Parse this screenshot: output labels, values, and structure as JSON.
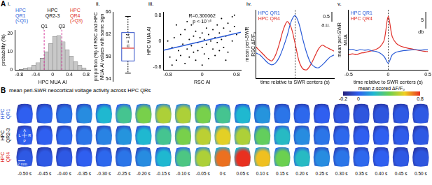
{
  "panel_A_label": "A",
  "chart_data": [
    {
      "panel": "i.",
      "type": "bar",
      "x_label": "HPC MUA AI",
      "y_label": "probability (%)",
      "bins": [
        -0.8,
        -0.7,
        -0.6,
        -0.5,
        -0.4,
        -0.3,
        -0.2,
        -0.1,
        0,
        0.1,
        0.2,
        0.3,
        0.4,
        0.5,
        0.6,
        0.7,
        0.8
      ],
      "values": [
        0.3,
        0.7,
        1.3,
        2.5,
        4,
        6.5,
        10,
        14.5,
        18.5,
        19,
        15.5,
        11,
        7.5,
        4.5,
        2.5,
        1
      ],
      "color": "#c8c8c8",
      "xlim": [
        -0.9,
        0.9
      ],
      "xticks": [
        -0.8,
        -0.4,
        0,
        0.4,
        0.8
      ],
      "ylim": [
        0,
        22
      ],
      "yticks": [
        0,
        10,
        20
      ],
      "grid": false,
      "quartiles": [
        {
          "label": "Q1",
          "value": -0.2
        },
        {
          "label": "Q3",
          "value": 0.22
        }
      ],
      "groups": [
        {
          "label": [
            "HPC",
            "QR1",
            "(<Q1)"
          ],
          "color": "#2a5bd7"
        },
        {
          "label": [
            "HPC",
            "QR2-3"
          ],
          "color": "#000000"
        },
        {
          "label": [
            "HPC",
            "QR4",
            "(>Q3)"
          ],
          "color": "#e0302a"
        }
      ]
    },
    {
      "panel": "ii.",
      "type": "box",
      "y_label": [
        "proportion (%) of RSC and HPC",
        "MUA AI values with same sign"
      ],
      "box": {
        "min": 55,
        "q1": 57.2,
        "median": 59.5,
        "q3": 62.3,
        "max": 65.2
      },
      "annotation": "n = 14",
      "ylim": [
        53.5,
        66
      ],
      "yticks": [
        54,
        58,
        62,
        66
      ],
      "tick_labels": "y",
      "grid": false
    },
    {
      "panel": "iii.",
      "type": "scatter",
      "x_label": "RSC AI",
      "y_label": "HPC MUA AI",
      "series": [
        {
          "type": "scatter",
          "color": "#000000",
          "x": [
            -0.75,
            -0.7,
            -0.65,
            -0.6,
            -0.55,
            -0.5,
            -0.5,
            -0.45,
            -0.4,
            -0.4,
            -0.35,
            -0.3,
            -0.3,
            -0.25,
            -0.25,
            -0.2,
            -0.2,
            -0.15,
            -0.15,
            -0.1,
            -0.1,
            -0.05,
            -0.05,
            0,
            0,
            0,
            0.05,
            0.05,
            0.1,
            0.1,
            0.15,
            0.15,
            0.2,
            0.2,
            0.25,
            0.25,
            0.3,
            0.3,
            0.35,
            0.35,
            0.4,
            0.4,
            0.45,
            0.45,
            0.5,
            0.5,
            0.55,
            0.6,
            0.6,
            0.65,
            0.7,
            0.7,
            0.75,
            -0.6,
            -0.8,
            0.8,
            -0.35,
            0.55,
            -0.7,
            0.75
          ],
          "values": [
            -0.5,
            -0.2,
            0.1,
            -0.6,
            -0.3,
            0.2,
            -0.45,
            -0.1,
            -0.7,
            0.35,
            -0.25,
            0.05,
            -0.5,
            0.5,
            -0.15,
            -0.35,
            0.15,
            -0.6,
            0.3,
            -0.05,
            -0.3,
            0.6,
            0.1,
            -0.2,
            0.25,
            -0.75,
            0.05,
            -0.4,
            0.4,
            -0.1,
            0.2,
            -0.55,
            0.65,
            0,
            -0.25,
            0.35,
            0.1,
            -0.45,
            0.5,
            -0.05,
            0.25,
            -0.3,
            0.7,
            0.05,
            0.4,
            -0.2,
            0.15,
            0.55,
            -0.35,
            0.3,
            0.75,
            0,
            0.45,
            0.5,
            0,
            0.2,
            0.6,
            -0.6,
            -0.75,
            0.8
          ]
        },
        {
          "type": "line",
          "color": "#2a5bd7",
          "x": [
            -0.9,
            0.9
          ],
          "values": [
            -0.29,
            0.27
          ]
        }
      ],
      "annotations": [
        "R=0.300062",
        "p < 10⁻¹⁵"
      ],
      "xlim": [
        -0.9,
        0.9
      ],
      "xticks": [
        -0.8,
        0,
        0.8
      ],
      "ylim": [
        -0.9,
        0.9
      ],
      "yticks": [
        -0.8,
        0,
        0.8
      ],
      "grid": false
    },
    {
      "panel": "iv.",
      "type": "line",
      "x_label": "time relative to SWR centers (s)",
      "y_label": [
        "mean peri-SWR",
        "RSC ΔF/F₀"
      ],
      "x": [
        -1,
        -0.9,
        -0.8,
        -0.7,
        -0.6,
        -0.5,
        -0.4,
        -0.3,
        -0.2,
        -0.1,
        0,
        0.1,
        0.2,
        0.3,
        0.4,
        0.5,
        0.6,
        0.7,
        0.8,
        0.9,
        1
      ],
      "series": [
        {
          "name": "HPC QR1",
          "color": "#2a5bd7",
          "values": [
            0.3,
            0.2,
            0,
            -0.2,
            -0.3,
            -0.2,
            0.1,
            0.6,
            1.2,
            1.9,
            2.2,
            1.8,
            1,
            0.3,
            -0.2,
            -0.4,
            -0.45,
            -0.3,
            -0.1,
            0.1,
            0.2
          ]
        },
        {
          "name": "HPC QR4",
          "color": "#e0302a",
          "values": [
            0.6,
            0.4,
            0.2,
            0,
            -0.1,
            0.2,
            0.8,
            1.5,
            1.9,
            1.6,
            0.8,
            -0.1,
            -0.5,
            -0.55,
            -0.3,
            0.1,
            0.5,
            0.7,
            0.6,
            0.5,
            0.4
          ]
        }
      ],
      "legend": "top-left",
      "tick_labels": false,
      "grid": false,
      "xlim": [
        -1,
        1
      ],
      "ylim": [
        -1,
        2.5
      ],
      "reference_line_x": 0,
      "scale_bar": {
        "value": 0.5,
        "label": "0.5",
        "unit": "a.u."
      }
    },
    {
      "panel": "v.",
      "type": "line",
      "x_label": "time relative to SWR centers (s)",
      "y_label": [
        "mean peri-SWR",
        "MUA"
      ],
      "x": [
        -0.5,
        -0.45,
        -0.4,
        -0.35,
        -0.3,
        -0.25,
        -0.2,
        -0.15,
        -0.1,
        -0.05,
        0,
        0.05,
        0.1,
        0.15,
        0.2,
        0.25,
        0.3,
        0.35,
        0.4,
        0.45,
        0.5
      ],
      "series": [
        {
          "name": "HPC QR1",
          "color": "#2a5bd7",
          "values": [
            3,
            3.2,
            2.8,
            3.1,
            2.9,
            3,
            2.7,
            2.5,
            2,
            1,
            -1,
            1.5,
            2.3,
            2.6,
            2.8,
            2.9,
            3,
            3.1,
            2.9,
            3,
            3
          ]
        },
        {
          "name": "HPC QR4",
          "color": "#e0302a",
          "values": [
            1.5,
            1.8,
            1.6,
            2,
            2.2,
            2.5,
            2.8,
            3.2,
            4,
            6,
            13,
            7,
            5,
            4.2,
            3.8,
            3.5,
            3.3,
            3,
            2.8,
            2.6,
            2.5
          ]
        }
      ],
      "legend": "top-left",
      "tick_labels": "x",
      "grid": false,
      "xlim": [
        -0.5,
        0.5
      ],
      "xticks": [
        -0.5,
        0,
        0.5
      ],
      "ylim": [
        -3,
        15
      ],
      "reference_line_x": 0,
      "scale_bar": {
        "value": 5,
        "label": "5",
        "unit": "db"
      }
    }
  ],
  "panel_B": {
    "label": "B",
    "title": "mean peri-SWR neocortical voltage activity across HPC QRs",
    "colorbar": {
      "title": "mean z-scored ΔF/F₀",
      "range": [
        -0.2,
        0.8
      ],
      "ticks": [
        -0.2,
        0,
        0.8
      ]
    },
    "times": [
      "-0.50 s",
      "-0.45 s",
      "-0.40 s",
      "-0.35 s",
      "-0.30 s",
      "-0.25 s",
      "-0.20 s",
      "-0.15 s",
      "-0.10 s",
      "-0.05 s",
      "0 s",
      "0.05 s",
      "0.10 s",
      "0.15 s",
      "0.20 s",
      "0.25 s",
      "0.30 s",
      "0.35 s",
      "0.40 s",
      "0.45 s",
      "0.50 s"
    ],
    "rows": [
      {
        "label": [
          "HPC",
          "QR1"
        ],
        "color": "#2a5bd7",
        "values": [
          0,
          0.02,
          0.05,
          0.1,
          0.2,
          0.3,
          0.42,
          0.5,
          0.5,
          0.42,
          0.3,
          0.2,
          0.12,
          0.05,
          0.02,
          0,
          -0.02,
          -0.03,
          -0.03,
          -0.02,
          -0.02
        ]
      },
      {
        "label": [
          "HPC",
          "QR2-3"
        ],
        "color": "#000000",
        "values": [
          0,
          0,
          0.02,
          0.05,
          0.08,
          0.12,
          0.2,
          0.3,
          0.42,
          0.52,
          0.58,
          0.5,
          0.38,
          0.22,
          0.1,
          0.05,
          0.02,
          0,
          0,
          -0.01,
          -0.02
        ]
      },
      {
        "label": [
          "HPC",
          "QR4"
        ],
        "color": "#e0302a",
        "values": [
          -0.02,
          -0.02,
          -0.02,
          0,
          0.02,
          0.05,
          0.1,
          0.2,
          0.32,
          0.5,
          0.72,
          0.8,
          0.62,
          0.4,
          0.22,
          0.1,
          0.05,
          0.02,
          0,
          -0.02,
          -0.03
        ]
      }
    ],
    "orientation_labels": {
      "anterior": "A",
      "posterior": "P",
      "left": "L",
      "right": "R"
    },
    "scale_bar": "2 mm"
  }
}
